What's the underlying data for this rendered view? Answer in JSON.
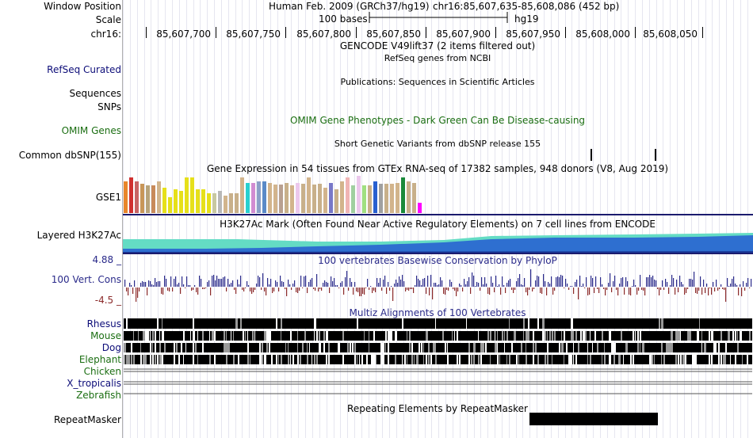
{
  "header": {
    "window_position_label": "Window Position",
    "scale_label": "Scale",
    "chrom_label": "chr16:",
    "assembly": "Human Feb. 2009 (GRCh37/hg19)",
    "position": "chr16:85,607,635-85,608,086 (452 bp)",
    "scale_text": "100 bases",
    "db": "hg19",
    "ticks": [
      "85,607,700",
      "85,607,750",
      "85,607,800",
      "85,607,850",
      "85,607,900",
      "85,607,950",
      "85,608,000",
      "85,608,050"
    ]
  },
  "tracks": {
    "gencode_title": "GENCODE V49lift37 (2 items filtered out)",
    "refseq_label": "RefSeq Curated",
    "refseq_title": "RefSeq genes from NCBI",
    "pubs_title": "Publications: Sequences in Scientific Articles",
    "sequences_label": "Sequences",
    "snps_label": "SNPs",
    "omim_label": "OMIM Genes",
    "omim_title": "OMIM Gene Phenotypes - Dark Green Can Be Disease-causing",
    "dbsnp_title": "Short Genetic Variants from dbSNP release 155",
    "dbsnp_label": "Common dbSNP(155)",
    "gtex_title": "Gene Expression in 54 tissues from GTEx RNA-seq of 17382 samples, 948 donors (V8, Aug 2019)",
    "gtex_label": "GSE1",
    "h3k27_label": "Layered H3K27Ac",
    "h3k27_title": "H3K27Ac Mark (Often Found Near Active Regulatory Elements) on 7 cell lines from ENCODE",
    "cons_max": "4.88 _",
    "cons_label": "100 Vert. Cons",
    "cons_min": "-4.5 _",
    "cons_title": "100 vertebrates Basewise Conservation by PhyloP",
    "multiz_title": "Multiz Alignments of 100 Vertebrates",
    "species": [
      "Rhesus",
      "Mouse",
      "Dog",
      "Elephant",
      "Chicken",
      "X_tropicalis",
      "Zebrafish"
    ],
    "repeat_title": "Repeating Elements by RepeatMasker",
    "repeat_label": "RepeatMasker"
  },
  "colors": {
    "refseq": "#0c0c78",
    "omim": "#1b6e12",
    "cons_pos": "#2a2a8a",
    "cons_neg": "#8b2a2a",
    "h3k27_teal": "#64dcc4",
    "h3k27_blue": "#2e6fd0",
    "species_blue": "#0c0c78",
    "species_green": "#1b6e12"
  },
  "chart_data": {
    "type": "bar",
    "title": "Gene Expression in 54 tissues from GTEx RNA-seq of 17382 samples, 948 donors (V8, Aug 2019)",
    "ylabel": "",
    "values": [
      40,
      45,
      40,
      37,
      35,
      35,
      40,
      32,
      20,
      30,
      28,
      45,
      45,
      30,
      30,
      25,
      25,
      28,
      22,
      25,
      25,
      45,
      38,
      38,
      40,
      40,
      38,
      36,
      36,
      38,
      35,
      38,
      37,
      45,
      36,
      37,
      32,
      38,
      30,
      40,
      45,
      35,
      47,
      35,
      35,
      40,
      37,
      37,
      37,
      38,
      45,
      40,
      38,
      13
    ]
  }
}
